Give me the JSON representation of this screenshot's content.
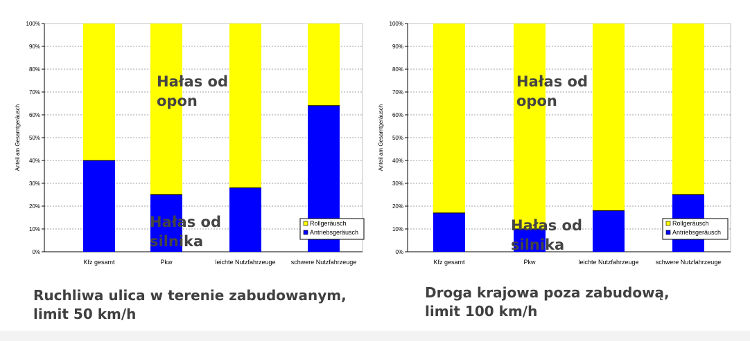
{
  "colors": {
    "rollgeraeusch": "#ffff00",
    "antriebsgeraeusch": "#0000ff",
    "overlay_text": "#444444",
    "caption_text": "#404040"
  },
  "chart_data": [
    {
      "type": "bar",
      "stacked": true,
      "percent": true,
      "ylabel": "Anteil am Gesamtgeräusch",
      "ylim": [
        0,
        100
      ],
      "yticks": [
        "0%",
        "10%",
        "20%",
        "30%",
        "40%",
        "50%",
        "60%",
        "70%",
        "80%",
        "90%",
        "100%"
      ],
      "grid": true,
      "legend_position": "bottom-right",
      "categories": [
        "Kfz gesamt",
        "Pkw",
        "leichte Nutzfahrzeuge",
        "schwere Nutzfahrzeuge"
      ],
      "series": [
        {
          "name": "Antriebsgeräusch",
          "values": [
            40,
            25,
            28,
            64
          ]
        },
        {
          "name": "Rollgeräusch",
          "values": [
            60,
            75,
            72,
            36
          ]
        }
      ],
      "annotations": [
        {
          "lines": [
            "Hałas od",
            "opon"
          ]
        },
        {
          "lines": [
            "Hałas od",
            "silnika"
          ]
        }
      ],
      "caption_lines": [
        "Ruchliwa ulica w terenie zabudowanym,",
        "limit 50 km/h"
      ]
    },
    {
      "type": "bar",
      "stacked": true,
      "percent": true,
      "ylabel": "Anteil am Gesamtgeräusch",
      "ylim": [
        0,
        100
      ],
      "yticks": [
        "0%",
        "10%",
        "20%",
        "30%",
        "40%",
        "50%",
        "60%",
        "70%",
        "80%",
        "90%",
        "100%"
      ],
      "grid": true,
      "legend_position": "bottom-right",
      "categories": [
        "Kfz gesamt",
        "Pkw",
        "leichte Nutzfahrzeuge",
        "schwere Nutzfahrzeuge"
      ],
      "series": [
        {
          "name": "Antriebsgeräusch",
          "values": [
            17,
            10,
            18,
            25
          ]
        },
        {
          "name": "Rollgeräusch",
          "values": [
            83,
            90,
            82,
            75
          ]
        }
      ],
      "annotations": [
        {
          "lines": [
            "Hałas od",
            "opon"
          ]
        },
        {
          "lines": [
            "Hałas od",
            "silnika"
          ]
        }
      ],
      "caption_lines": [
        "Droga krajowa poza zabudową,",
        "limit 100 km/h"
      ]
    }
  ]
}
